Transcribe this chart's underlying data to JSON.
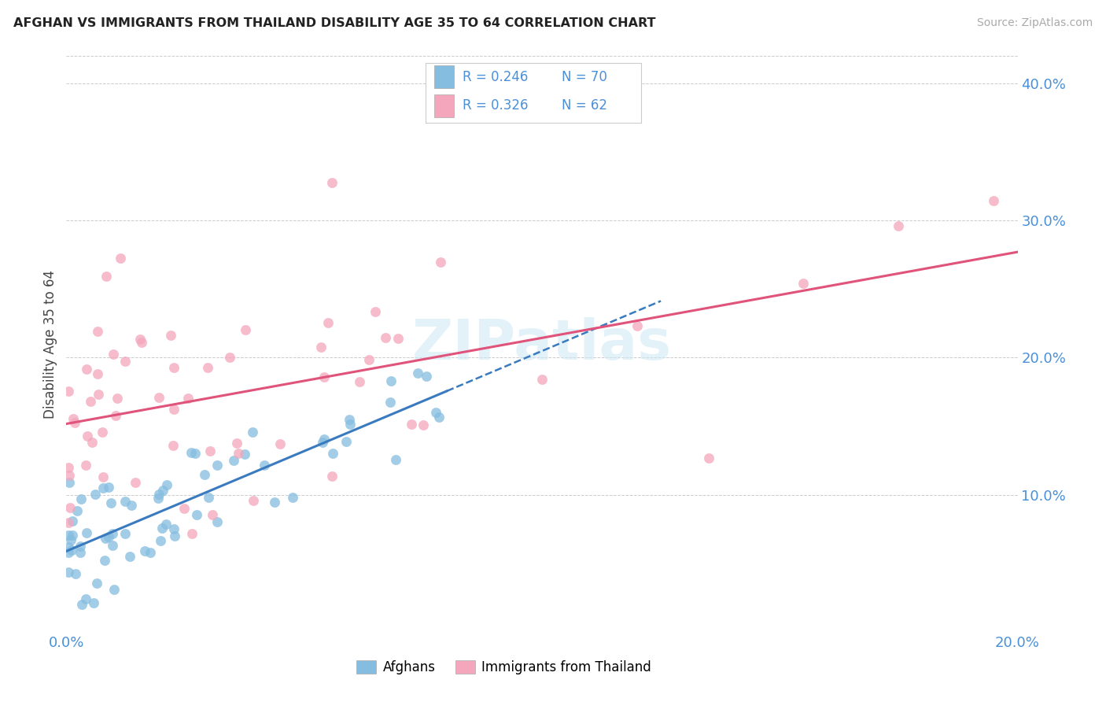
{
  "title": "AFGHAN VS IMMIGRANTS FROM THAILAND DISABILITY AGE 35 TO 64 CORRELATION CHART",
  "source": "Source: ZipAtlas.com",
  "ylabel": "Disability Age 35 to 64",
  "x_min": 0.0,
  "x_max": 0.2,
  "y_min": 0.0,
  "y_max": 0.42,
  "x_ticks": [
    0.0,
    0.05,
    0.1,
    0.15,
    0.2
  ],
  "x_tick_labels": [
    "0.0%",
    "",
    "",
    "",
    "20.0%"
  ],
  "y_ticks": [
    0.0,
    0.1,
    0.2,
    0.3,
    0.4
  ],
  "y_tick_labels_right": [
    "",
    "10.0%",
    "20.0%",
    "30.0%",
    "40.0%"
  ],
  "legend_r1": "R = 0.246",
  "legend_n1": "N = 70",
  "legend_r2": "R = 0.326",
  "legend_n2": "N = 62",
  "blue_color": "#85bde0",
  "pink_color": "#f4a6bc",
  "blue_line_color": "#3a7abf",
  "pink_line_color": "#e0537a",
  "watermark": "ZIPatlas",
  "afg_seed": 99,
  "tha_seed": 55
}
